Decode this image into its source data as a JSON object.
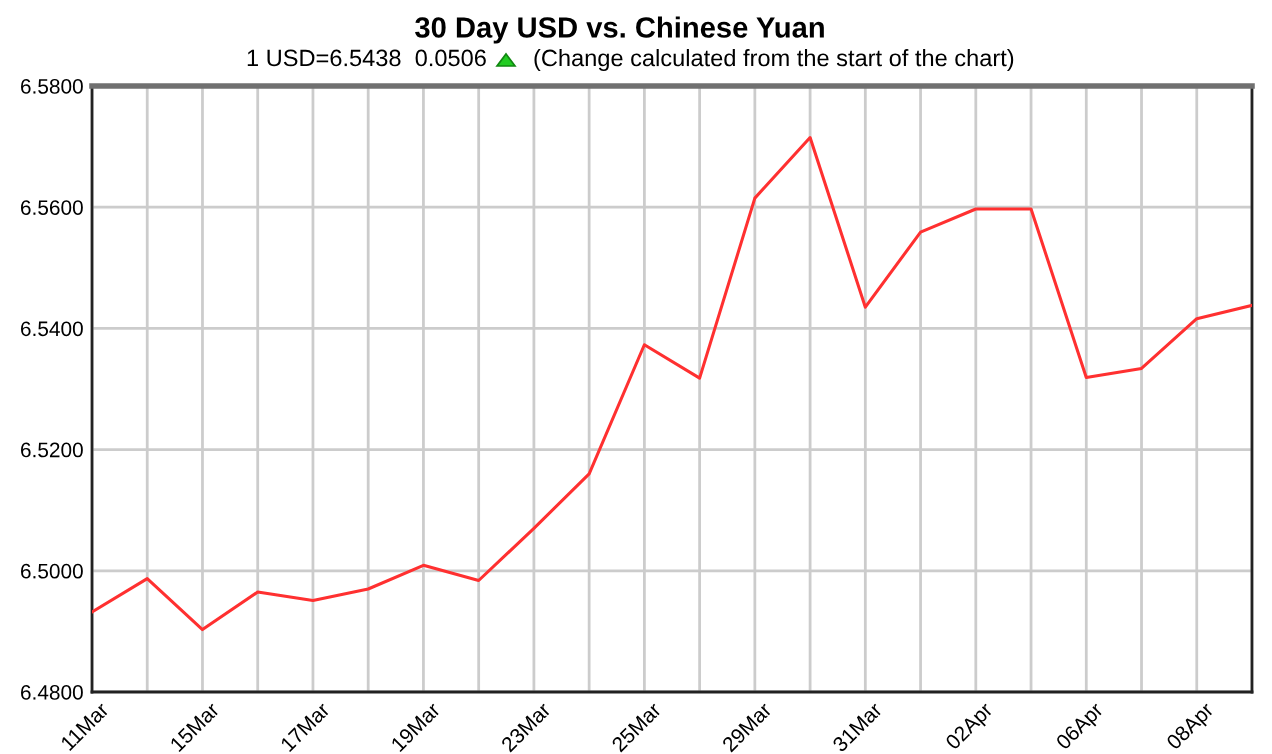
{
  "chart_data": {
    "type": "line",
    "title": "30 Day USD vs. Chinese Yuan",
    "subtitle": "1 USD=6.5438  0.0506",
    "annotations": [
      "(Change calculated from the start of the chart)"
    ],
    "categories": [
      "11Mar",
      null,
      "15Mar",
      null,
      "17Mar",
      null,
      "19Mar",
      null,
      "23Mar",
      null,
      "25Mar",
      null,
      "29Mar",
      null,
      "31Mar",
      null,
      "02Apr",
      null,
      "06Apr",
      null,
      "08Apr",
      null
    ],
    "values": [
      6.4932,
      6.4987,
      6.4903,
      6.4965,
      6.4951,
      6.497,
      6.5009,
      6.4984,
      6.507,
      6.516,
      6.5373,
      6.5318,
      6.5615,
      6.5715,
      6.5435,
      6.5559,
      6.5597,
      6.5597,
      6.5319,
      6.5334,
      6.5416,
      6.5438
    ],
    "color": "#ff3030",
    "ylim": [
      6.48,
      6.58
    ],
    "yticks": [
      {
        "value": 6.48,
        "label": "6.4800"
      },
      {
        "value": 6.5,
        "label": "6.5000"
      },
      {
        "value": 6.52,
        "label": "6.5200"
      },
      {
        "value": 6.54,
        "label": "6.5400"
      },
      {
        "value": 6.56,
        "label": "6.5600"
      },
      {
        "value": 6.58,
        "label": "6.5800"
      }
    ],
    "grid": true
  }
}
